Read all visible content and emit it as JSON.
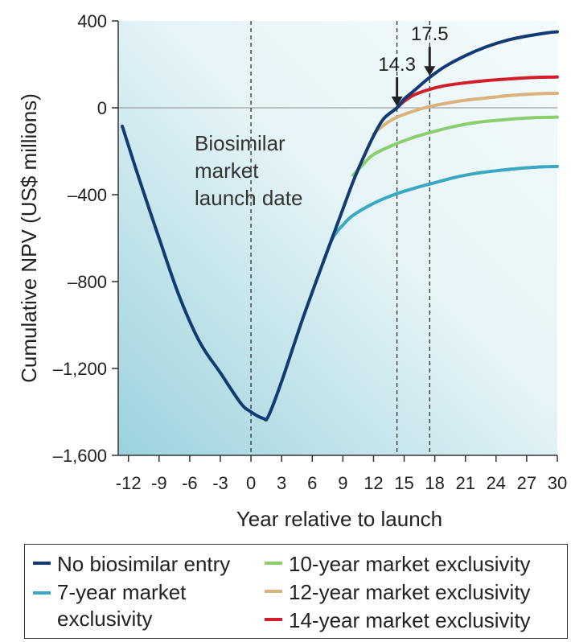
{
  "chart_data": {
    "type": "line",
    "xlabel": "Year relative to launch",
    "ylabel": "Cumulative NPV (US$ millions)",
    "xlim": [
      -13,
      30
    ],
    "ylim": [
      -1600,
      400
    ],
    "x_ticks": [
      -12,
      -9,
      -6,
      -3,
      0,
      3,
      6,
      9,
      12,
      15,
      18,
      21,
      24,
      27,
      30
    ],
    "x_tick_labels": [
      "-12",
      "-9",
      "-6",
      "-3",
      "0",
      "3",
      "6",
      "9",
      "12",
      "15",
      "18",
      "21",
      "24",
      "27",
      "30"
    ],
    "y_ticks": [
      400,
      0,
      -400,
      -800,
      -1200,
      -1600
    ],
    "y_tick_labels": [
      "400",
      "0",
      "–400",
      "–800",
      "–1,200",
      "–1,600"
    ],
    "vertical_lines": [
      0,
      14.3,
      17.5
    ],
    "annotations": [
      {
        "text": "Biosimilar\nmarket\nlaunch date",
        "x": 0.5,
        "y": -150
      },
      {
        "text": "14.3",
        "x": 14.3,
        "y": 0,
        "arrow": true
      },
      {
        "text": "17.5",
        "x": 17.5,
        "y": 140,
        "arrow": true
      }
    ],
    "series": [
      {
        "name": "No biosimilar entry",
        "color": "#123a73",
        "points": [
          [
            -12.6,
            -85
          ],
          [
            -11,
            -320
          ],
          [
            -9,
            -600
          ],
          [
            -7,
            -870
          ],
          [
            -5,
            -1080
          ],
          [
            -3,
            -1220
          ],
          [
            -1,
            -1360
          ],
          [
            0,
            -1400
          ],
          [
            1.2,
            -1430
          ],
          [
            1.7,
            -1420
          ],
          [
            3,
            -1260
          ],
          [
            5,
            -980
          ],
          [
            7,
            -720
          ],
          [
            8.5,
            -530
          ],
          [
            10,
            -340
          ],
          [
            11,
            -230
          ],
          [
            12,
            -130
          ],
          [
            13,
            -50
          ],
          [
            14.3,
            0
          ],
          [
            15,
            40
          ],
          [
            16,
            80
          ],
          [
            17.5,
            140
          ],
          [
            19,
            190
          ],
          [
            21,
            240
          ],
          [
            23,
            280
          ],
          [
            25,
            310
          ],
          [
            27,
            330
          ],
          [
            29,
            345
          ],
          [
            30,
            350
          ]
        ]
      },
      {
        "name": "7-year market exclusivity",
        "color": "#3aa8c1",
        "points": [
          [
            7,
            -720
          ],
          [
            8,
            -600
          ],
          [
            9,
            -540
          ],
          [
            10,
            -495
          ],
          [
            12,
            -440
          ],
          [
            14,
            -400
          ],
          [
            16,
            -370
          ],
          [
            18,
            -345
          ],
          [
            20,
            -320
          ],
          [
            22,
            -302
          ],
          [
            24,
            -290
          ],
          [
            26,
            -280
          ],
          [
            28,
            -273
          ],
          [
            30,
            -270
          ]
        ]
      },
      {
        "name": "10-year market exclusivity",
        "color": "#8ccd6d",
        "points": [
          [
            10,
            -310
          ],
          [
            11,
            -260
          ],
          [
            12,
            -215
          ],
          [
            14,
            -170
          ],
          [
            16,
            -135
          ],
          [
            18,
            -108
          ],
          [
            20,
            -85
          ],
          [
            22,
            -68
          ],
          [
            24,
            -58
          ],
          [
            26,
            -50
          ],
          [
            28,
            -45
          ],
          [
            30,
            -43
          ]
        ]
      },
      {
        "name": "12-year market exclusivity",
        "color": "#d9b27c",
        "points": [
          [
            12,
            -120
          ],
          [
            13,
            -80
          ],
          [
            14,
            -50
          ],
          [
            15,
            -30
          ],
          [
            17,
            0
          ],
          [
            19,
            20
          ],
          [
            21,
            35
          ],
          [
            23,
            45
          ],
          [
            25,
            55
          ],
          [
            27,
            62
          ],
          [
            29,
            66
          ],
          [
            30,
            67
          ]
        ]
      },
      {
        "name": "14-year market exclusivity",
        "color": "#d11f2a",
        "points": [
          [
            14.3,
            0
          ],
          [
            15,
            30
          ],
          [
            16,
            60
          ],
          [
            17.5,
            85
          ],
          [
            19,
            102
          ],
          [
            21,
            115
          ],
          [
            23,
            125
          ],
          [
            25,
            132
          ],
          [
            27,
            138
          ],
          [
            29,
            141
          ],
          [
            30,
            142
          ]
        ]
      }
    ]
  },
  "legend": {
    "items": [
      {
        "label": "No biosimilar entry",
        "color": "#123a73"
      },
      {
        "label": "7-year market\nexclusivity",
        "color": "#3aa8c1"
      },
      {
        "label": "10-year market exclusivity",
        "color": "#8ccd6d"
      },
      {
        "label": "12-year market exclusivity",
        "color": "#d9b27c"
      },
      {
        "label": "14-year market exclusivity",
        "color": "#d11f2a"
      }
    ]
  }
}
